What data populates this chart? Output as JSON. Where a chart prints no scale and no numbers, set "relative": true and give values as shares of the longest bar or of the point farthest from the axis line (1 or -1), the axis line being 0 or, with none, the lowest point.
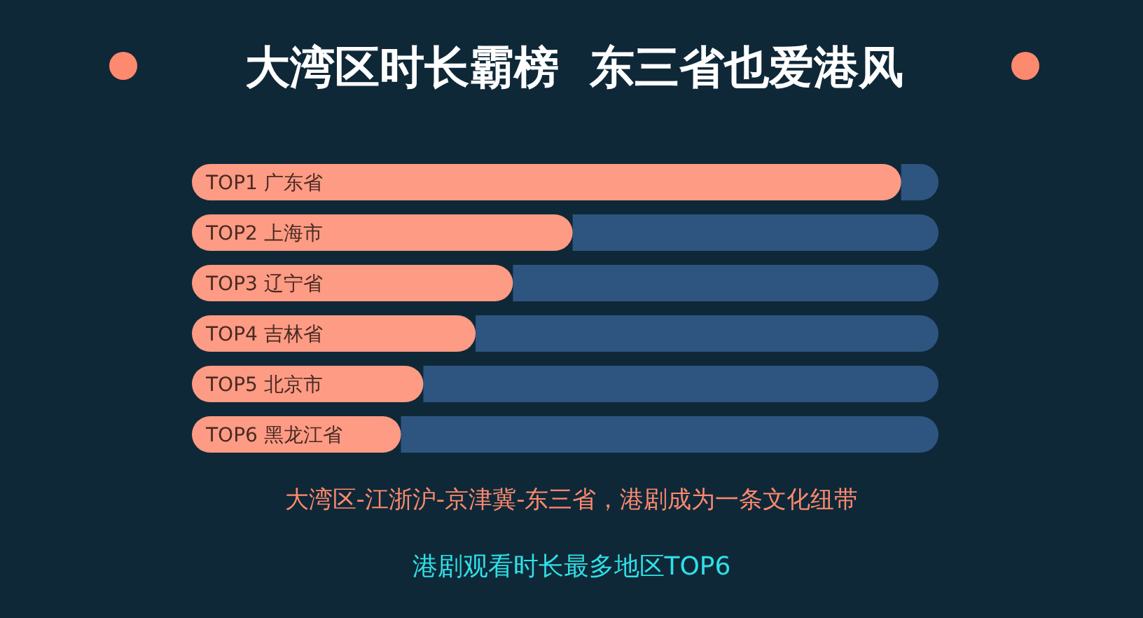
{
  "chart_data": {
    "type": "bar",
    "orientation": "horizontal",
    "relative": true,
    "stacked": true,
    "title": "大湾区时长霸榜  东三省也爱港风",
    "subtitle": "大湾区-江浙沪-京津冀-东三省，港剧成为一条文化纽带",
    "annotations": [
      "港剧观看时长最多地区TOP6"
    ],
    "categories": [
      "TOP1 广东省",
      "TOP2 上海市",
      "TOP3 辽宁省",
      "TOP4 吉林省",
      "TOP5 北京市",
      "TOP6 黑龙江省"
    ],
    "series": [
      {
        "color": "#fd9b84",
        "values": [
          0.95,
          0.51,
          0.43,
          0.38,
          0.31,
          0.28
        ]
      },
      {
        "color": "#2e5580",
        "values": [
          0.05,
          0.49,
          0.57,
          0.62,
          0.69,
          0.72
        ]
      }
    ]
  }
}
